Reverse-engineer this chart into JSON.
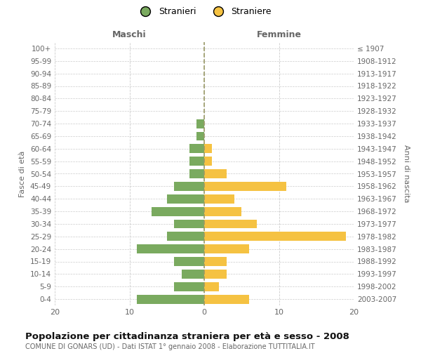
{
  "age_groups": [
    "100+",
    "95-99",
    "90-94",
    "85-89",
    "80-84",
    "75-79",
    "70-74",
    "65-69",
    "60-64",
    "55-59",
    "50-54",
    "45-49",
    "40-44",
    "35-39",
    "30-34",
    "25-29",
    "20-24",
    "15-19",
    "10-14",
    "5-9",
    "0-4"
  ],
  "birth_years": [
    "≤ 1907",
    "1908-1912",
    "1913-1917",
    "1918-1922",
    "1923-1927",
    "1928-1932",
    "1933-1937",
    "1938-1942",
    "1943-1947",
    "1948-1952",
    "1953-1957",
    "1958-1962",
    "1963-1967",
    "1968-1972",
    "1973-1977",
    "1978-1982",
    "1983-1987",
    "1988-1992",
    "1993-1997",
    "1998-2002",
    "2003-2007"
  ],
  "males": [
    0,
    0,
    0,
    0,
    0,
    0,
    1,
    1,
    2,
    2,
    2,
    4,
    5,
    7,
    4,
    5,
    9,
    4,
    3,
    4,
    9
  ],
  "females": [
    0,
    0,
    0,
    0,
    0,
    0,
    0,
    0,
    1,
    1,
    3,
    11,
    4,
    5,
    7,
    19,
    6,
    3,
    3,
    2,
    6
  ],
  "male_color": "#7aaa5f",
  "female_color": "#f5c242",
  "title": "Popolazione per cittadinanza straniera per età e sesso - 2008",
  "subtitle": "COMUNE DI GONARS (UD) - Dati ISTAT 1° gennaio 2008 - Elaborazione TUTTITALIA.IT",
  "header_left": "Maschi",
  "header_right": "Femmine",
  "ylabel_left": "Fasce di età",
  "ylabel_right": "Anni di nascita",
  "legend_male": "Stranieri",
  "legend_female": "Straniere",
  "xlim": 20,
  "bg_color": "#ffffff",
  "grid_color": "#cccccc",
  "text_color": "#666666",
  "title_color": "#111111",
  "center_line_color": "#999966"
}
